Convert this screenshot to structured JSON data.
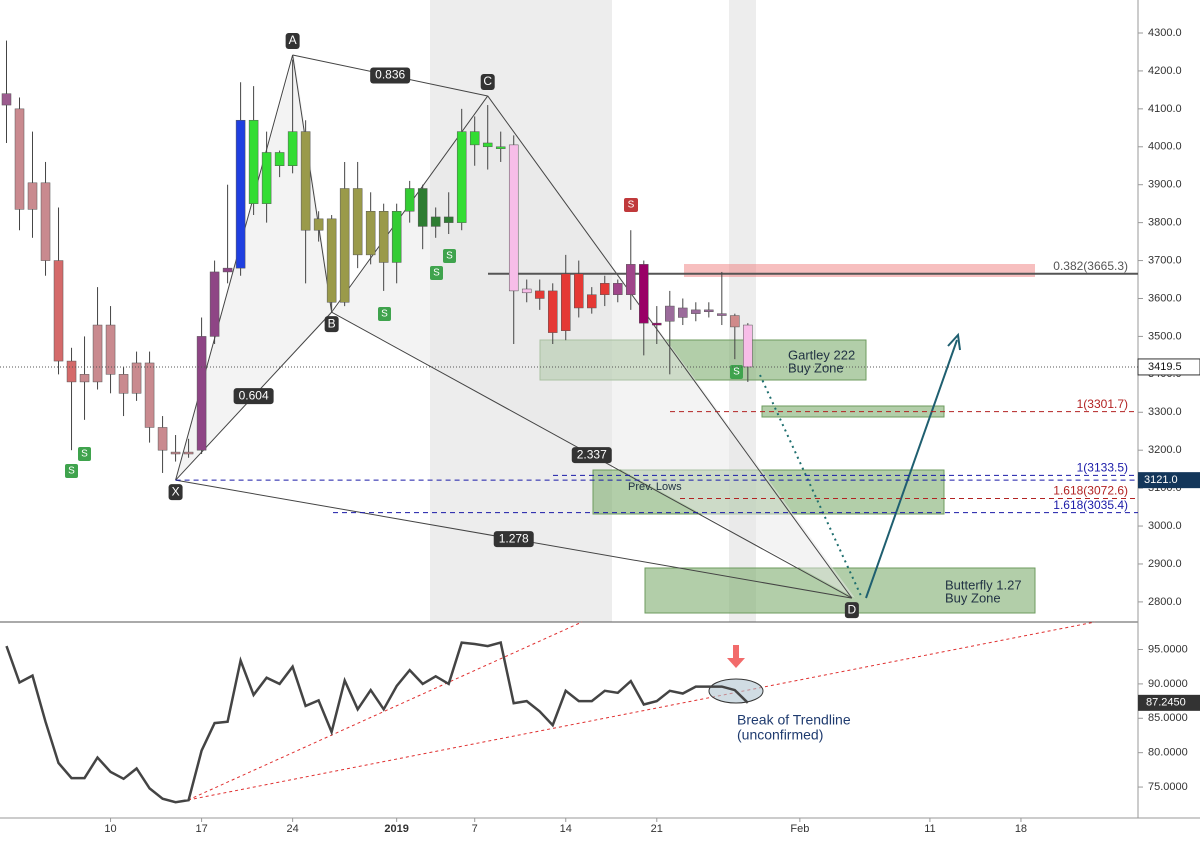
{
  "chart_data": [
    {
      "type": "candlestick",
      "xlim": [
        -0.5,
        87
      ],
      "ylim": [
        2747,
        4387
      ],
      "yticks": [
        {
          "value": 2800,
          "label": "2800.0"
        },
        {
          "value": 2900,
          "label": "2900.0"
        },
        {
          "value": 3000,
          "label": "3000.0"
        },
        {
          "value": 3100,
          "label": "3100.0"
        },
        {
          "value": 3200,
          "label": "3200.0"
        },
        {
          "value": 3300,
          "label": "3300.0"
        },
        {
          "value": 3400,
          "label": "3400.0"
        },
        {
          "value": 3500,
          "label": "3500.0"
        },
        {
          "value": 3600,
          "label": "3600.0"
        },
        {
          "value": 3700,
          "label": "3700.0"
        },
        {
          "value": 3800,
          "label": "3800.0"
        },
        {
          "value": 3900,
          "label": "3900.0"
        },
        {
          "value": 4000,
          "label": "4000.0"
        },
        {
          "value": 4100,
          "label": "4100.0"
        },
        {
          "value": 4200,
          "label": "4200.0"
        },
        {
          "value": 4300,
          "label": "4300.0"
        }
      ],
      "open": [
        4140,
        4100,
        3905,
        3905,
        3700,
        3435,
        3400,
        3380,
        3530,
        3400,
        3350,
        3430,
        3260,
        3195,
        3190,
        3200,
        3500,
        3670,
        3680,
        4070,
        3850,
        3985,
        3950,
        4040,
        3810,
        3810,
        3590,
        3890,
        3715,
        3830,
        3695,
        3830,
        3890,
        3790,
        3815,
        3800,
        4040,
        4010,
        3995,
        4005,
        3625,
        3620,
        3620,
        3515,
        3665,
        3610,
        3610,
        3640,
        3610,
        3690,
        3535,
        3580,
        3575,
        3570,
        3565,
        3560,
        3555,
        3530
      ],
      "high": [
        4280,
        4130,
        4040,
        3960,
        3840,
        3470,
        3500,
        3630,
        3580,
        3420,
        3460,
        3460,
        3290,
        3240,
        3230,
        3550,
        3700,
        3900,
        4170,
        4160,
        4040,
        3990,
        4230,
        4070,
        3830,
        3820,
        3960,
        3960,
        3880,
        3850,
        3850,
        3910,
        3900,
        3840,
        3880,
        4100,
        4080,
        4110,
        4040,
        4030,
        3650,
        3650,
        3640,
        3715,
        3700,
        3630,
        3660,
        3650,
        3780,
        3700,
        3580,
        3620,
        3600,
        3590,
        3590,
        3670,
        3560,
        3535
      ],
      "low": [
        4010,
        3780,
        3760,
        3660,
        3400,
        3200,
        3280,
        3360,
        3350,
        3290,
        3330,
        3220,
        3140,
        3170,
        3180,
        3190,
        3480,
        3640,
        3660,
        3820,
        3800,
        3920,
        3930,
        3640,
        3750,
        3570,
        3580,
        3680,
        3690,
        3620,
        3640,
        3800,
        3730,
        3760,
        3770,
        3780,
        3950,
        3940,
        3960,
        3480,
        3590,
        3570,
        3480,
        3490,
        3550,
        3560,
        3580,
        3590,
        3570,
        3450,
        3480,
        3400,
        3530,
        3540,
        3550,
        3530,
        3440,
        3380
      ],
      "close": [
        4110,
        3835,
        3835,
        3700,
        3435,
        3380,
        3380,
        3530,
        3400,
        3350,
        3430,
        3260,
        3200,
        3190,
        3195,
        3500,
        3670,
        3680,
        4070,
        3850,
        3985,
        3950,
        4040,
        3780,
        3780,
        3590,
        3890,
        3715,
        3830,
        3695,
        3830,
        3890,
        3790,
        3815,
        3800,
        4040,
        4005,
        4000,
        4000,
        3620,
        3615,
        3600,
        3510,
        3665,
        3575,
        3575,
        3640,
        3610,
        3690,
        3535,
        3530,
        3540,
        3550,
        3560,
        3570,
        3555,
        3525,
        3419.5
      ],
      "colors": [
        "#9c5c8f",
        "#c98a8f",
        "#c98a8f",
        "#c98a8f",
        "#d46a6a",
        "#d46a6a",
        "#c98a8f",
        "#c98a8f",
        "#c98a8f",
        "#c98a8f",
        "#c98a8f",
        "#c98a8f",
        "#c98a8f",
        "#c98a8f",
        "#c98a8f",
        "#8e4585",
        "#8e4585",
        "#8e4585",
        "#1f3fe0",
        "#33dd33",
        "#33dd33",
        "#33dd33",
        "#33dd33",
        "#9a9a4a",
        "#9a9a4a",
        "#9a9a4a",
        "#9a9a4a",
        "#9a9a4a",
        "#9a9a4a",
        "#9a9a4a",
        "#33cc33",
        "#33cc33",
        "#2e7d32",
        "#2e7d32",
        "#2e7d32",
        "#33dd33",
        "#33dd33",
        "#33dd33",
        "#33dd33",
        "#f7bde8",
        "#f7bde8",
        "#e53935",
        "#e53935",
        "#e53935",
        "#e53935",
        "#e53935",
        "#e53935",
        "#a0458a",
        "#a0458a",
        "#990066",
        "#990066",
        "#9b6b9b",
        "#9b6b9b",
        "#9b6b9b",
        "#9b6b9b",
        "#9b6b9b",
        "#d08a8a",
        "#f7bde8"
      ],
      "last_label": "3419.5",
      "x_level": {
        "value": 3121,
        "label": "3121.0"
      },
      "pattern": [
        {
          "label": "X",
          "x": 13,
          "y": 3121
        },
        {
          "label": "A",
          "x": 22,
          "y": 4242
        },
        {
          "label": "B",
          "x": 25,
          "y": 3564
        },
        {
          "label": "C",
          "x": 37,
          "y": 4134
        },
        {
          "label": "D",
          "x": 65,
          "y": 2810
        }
      ],
      "ratios": {
        "XB": 0.604,
        "AC": 0.836,
        "BD": 2.337,
        "XD": 1.278
      },
      "levels": [
        {
          "value": 3665.3,
          "label": "0.382(3665.3)",
          "color": "#555555"
        },
        {
          "value": 3301.7,
          "label": "1(3301.7)",
          "color": "#b22222"
        },
        {
          "value": 3133.5,
          "label": "1(3133.5)",
          "color": "#1a1aa8"
        },
        {
          "value": 3072.6,
          "label": "1.618(3072.6)",
          "color": "#b22222"
        },
        {
          "value": 3035.4,
          "label": "1.618(3035.4)",
          "color": "#1a1aa8"
        }
      ],
      "signal_label": "S",
      "gartley": [
        "Gartley 222",
        "Buy Zone"
      ],
      "butterfly": [
        "Butterfly 1.27",
        "Buy Zone"
      ],
      "prev_lows": "Prev. Lows"
    },
    {
      "type": "line",
      "xlim": [
        -0.5,
        87
      ],
      "ylim": [
        70.5,
        99
      ],
      "color": "#444444",
      "xticks": [
        {
          "value": 8,
          "label": "10"
        },
        {
          "value": 15,
          "label": "17"
        },
        {
          "value": 22,
          "label": "24"
        },
        {
          "value": 30,
          "label": "2019"
        },
        {
          "value": 36,
          "label": "7"
        },
        {
          "value": 43,
          "label": "14"
        },
        {
          "value": 50,
          "label": "21"
        },
        {
          "value": 61,
          "label": "Feb"
        },
        {
          "value": 71,
          "label": "11"
        },
        {
          "value": 78,
          "label": "18"
        }
      ],
      "yticks": [
        {
          "value": 75,
          "label": "75.0000"
        },
        {
          "value": 80,
          "label": "80.0000"
        },
        {
          "value": 85,
          "label": "85.0000"
        },
        {
          "value": 90,
          "label": "90.0000"
        },
        {
          "value": 95,
          "label": "95.0000"
        }
      ],
      "values": [
        95.5,
        90.2,
        91.2,
        84.5,
        78.5,
        76.3,
        76.3,
        79.3,
        77.2,
        76.2,
        77.7,
        74.8,
        73.3,
        72.8,
        73.1,
        80.3,
        84.3,
        84.5,
        93.4,
        88.4,
        90.9,
        90.0,
        92.5,
        86.8,
        87.6,
        83.0,
        90.5,
        86.3,
        89.1,
        86.3,
        89.7,
        92.0,
        90.0,
        91.1,
        90.0,
        96.0,
        95.8,
        95.5,
        96.0,
        87.2,
        87.5,
        86.0,
        84.0,
        89.0,
        87.5,
        87.5,
        89.0,
        88.7,
        90.4,
        87.0,
        87.5,
        89.0,
        88.6,
        89.6,
        89.6,
        89.6,
        89.1,
        87.245
      ],
      "last_label": "87.2450",
      "note": [
        "Break of Trendline",
        "(unconfirmed)"
      ]
    }
  ]
}
